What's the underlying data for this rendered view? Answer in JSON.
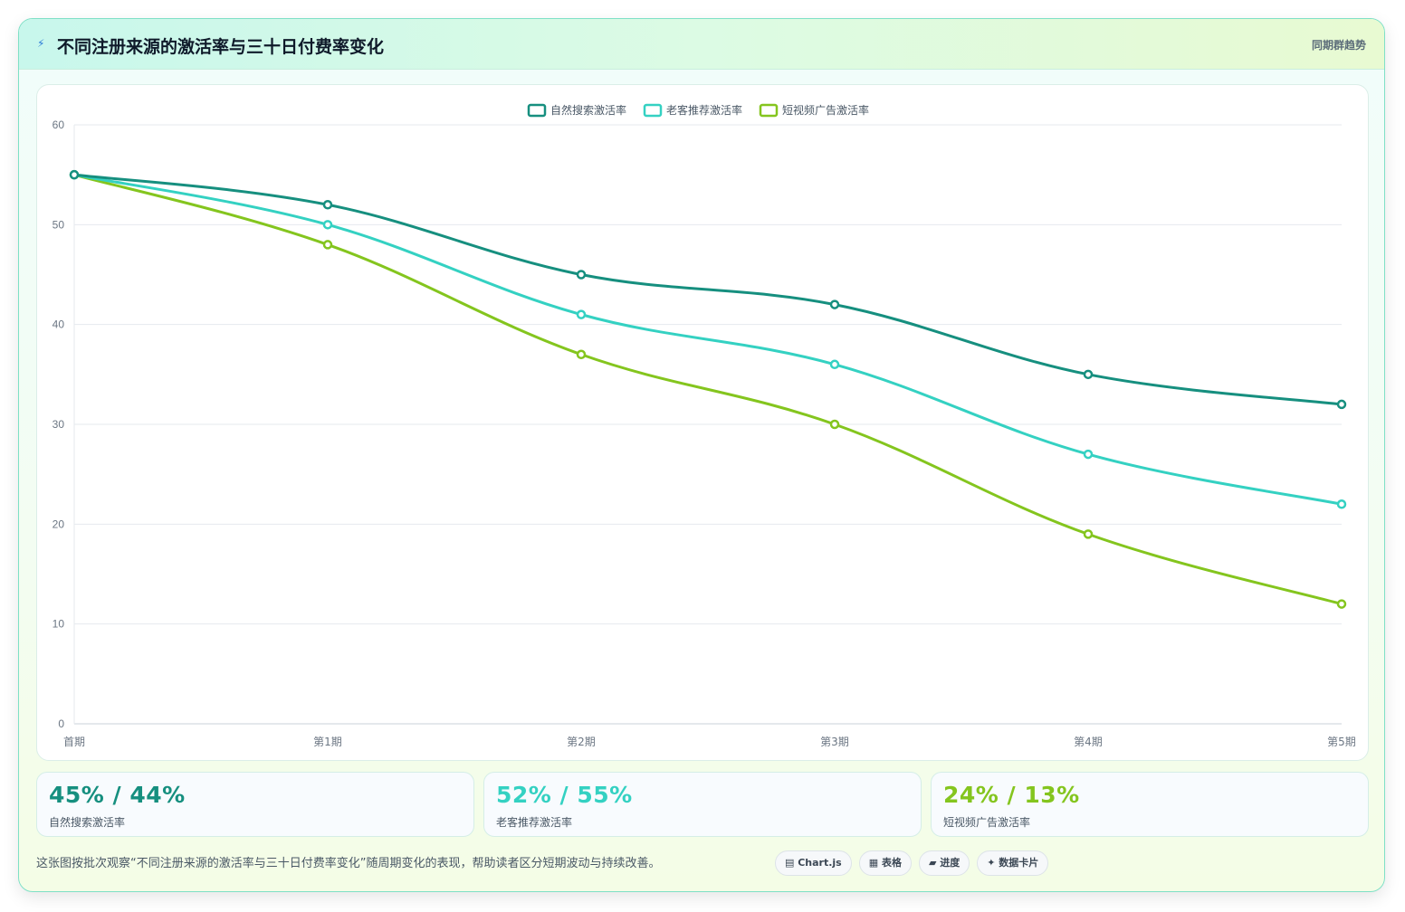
{
  "header": {
    "icon": "lightning-icon",
    "title": "不同注册来源的激活率与三十日付费率变化",
    "right_label": "同期群趋势"
  },
  "chart_data": {
    "type": "line",
    "categories": [
      "首期",
      "第1期",
      "第2期",
      "第3期",
      "第4期",
      "第5期"
    ],
    "ylim": [
      0,
      60
    ],
    "yticks": [
      0,
      10,
      20,
      30,
      40,
      50,
      60
    ],
    "grid": true,
    "legend_position": "top-center",
    "series": [
      {
        "name": "自然搜索激活率",
        "color": "#168f7f",
        "values": [
          55,
          52,
          45,
          42,
          35,
          32
        ]
      },
      {
        "name": "老客推荐激活率",
        "color": "#34d1c2",
        "values": [
          55,
          50,
          41,
          36,
          27,
          22
        ]
      },
      {
        "name": "短视频广告激活率",
        "color": "#84c51e",
        "values": [
          55,
          48,
          37,
          30,
          19,
          12
        ]
      }
    ]
  },
  "stats": [
    {
      "value": "45% / 44%",
      "label": "自然搜索激活率",
      "color": "#168f7f"
    },
    {
      "value": "52% / 55%",
      "label": "老客推荐激活率",
      "color": "#34d1c2"
    },
    {
      "value": "24% / 13%",
      "label": "短视频广告激活率",
      "color": "#84c51e"
    }
  ],
  "footer": {
    "note": "这张图按批次观察“不同注册来源的激活率与三十日付费率变化”随周期变化的表现，帮助读者区分短期波动与持续改善。",
    "tags": [
      {
        "label": "▤ Chart.js",
        "icon": "chart-icon"
      },
      {
        "label": "▦ 表格",
        "icon": "table-icon"
      },
      {
        "label": "▰ 进度",
        "icon": "progress-icon"
      },
      {
        "label": "✦ 数据卡片",
        "icon": "sparkle-icon"
      }
    ]
  }
}
